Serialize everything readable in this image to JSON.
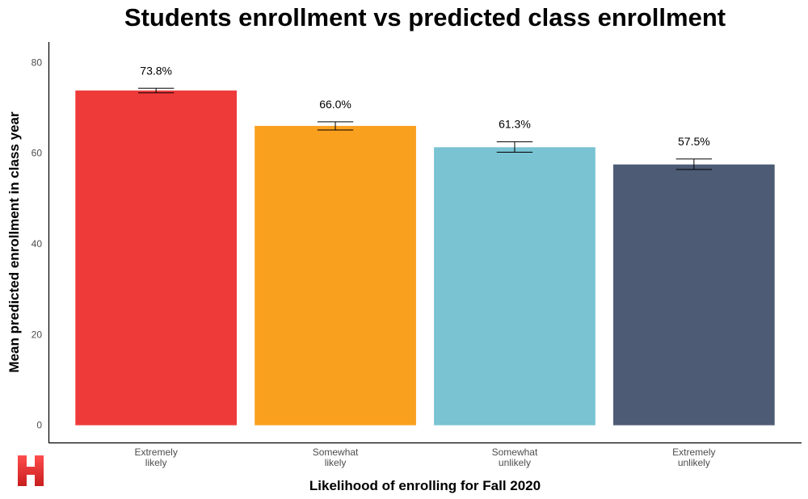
{
  "chart_data": {
    "type": "bar",
    "title": "Students enrollment vs predicted class enrollment",
    "xlabel": "Likelihood of enrolling for Fall 2020",
    "ylabel": "Mean predicted enrollment in class year",
    "categories": [
      [
        "Extremely",
        "likely"
      ],
      [
        "Somewhat",
        "likely"
      ],
      [
        "Somewhat",
        "unlikely"
      ],
      [
        "Extremely",
        "unlikely"
      ]
    ],
    "values": [
      73.8,
      66.0,
      61.3,
      57.5
    ],
    "data_labels": [
      "73.8%",
      "66.0%",
      "61.3%",
      "57.5%"
    ],
    "error_low": [
      73.3,
      65.1,
      60.2,
      56.4
    ],
    "error_high": [
      74.3,
      66.9,
      62.5,
      58.7
    ],
    "colors": [
      "#ef3a3a",
      "#f9a01e",
      "#79c3d3",
      "#4d5b75"
    ],
    "ylim": [
      -3.8,
      84.5
    ],
    "yticks": [
      0,
      20,
      40,
      60,
      80
    ],
    "grid": false
  },
  "logo": {
    "letter": "H",
    "color": "#e52d2d"
  }
}
